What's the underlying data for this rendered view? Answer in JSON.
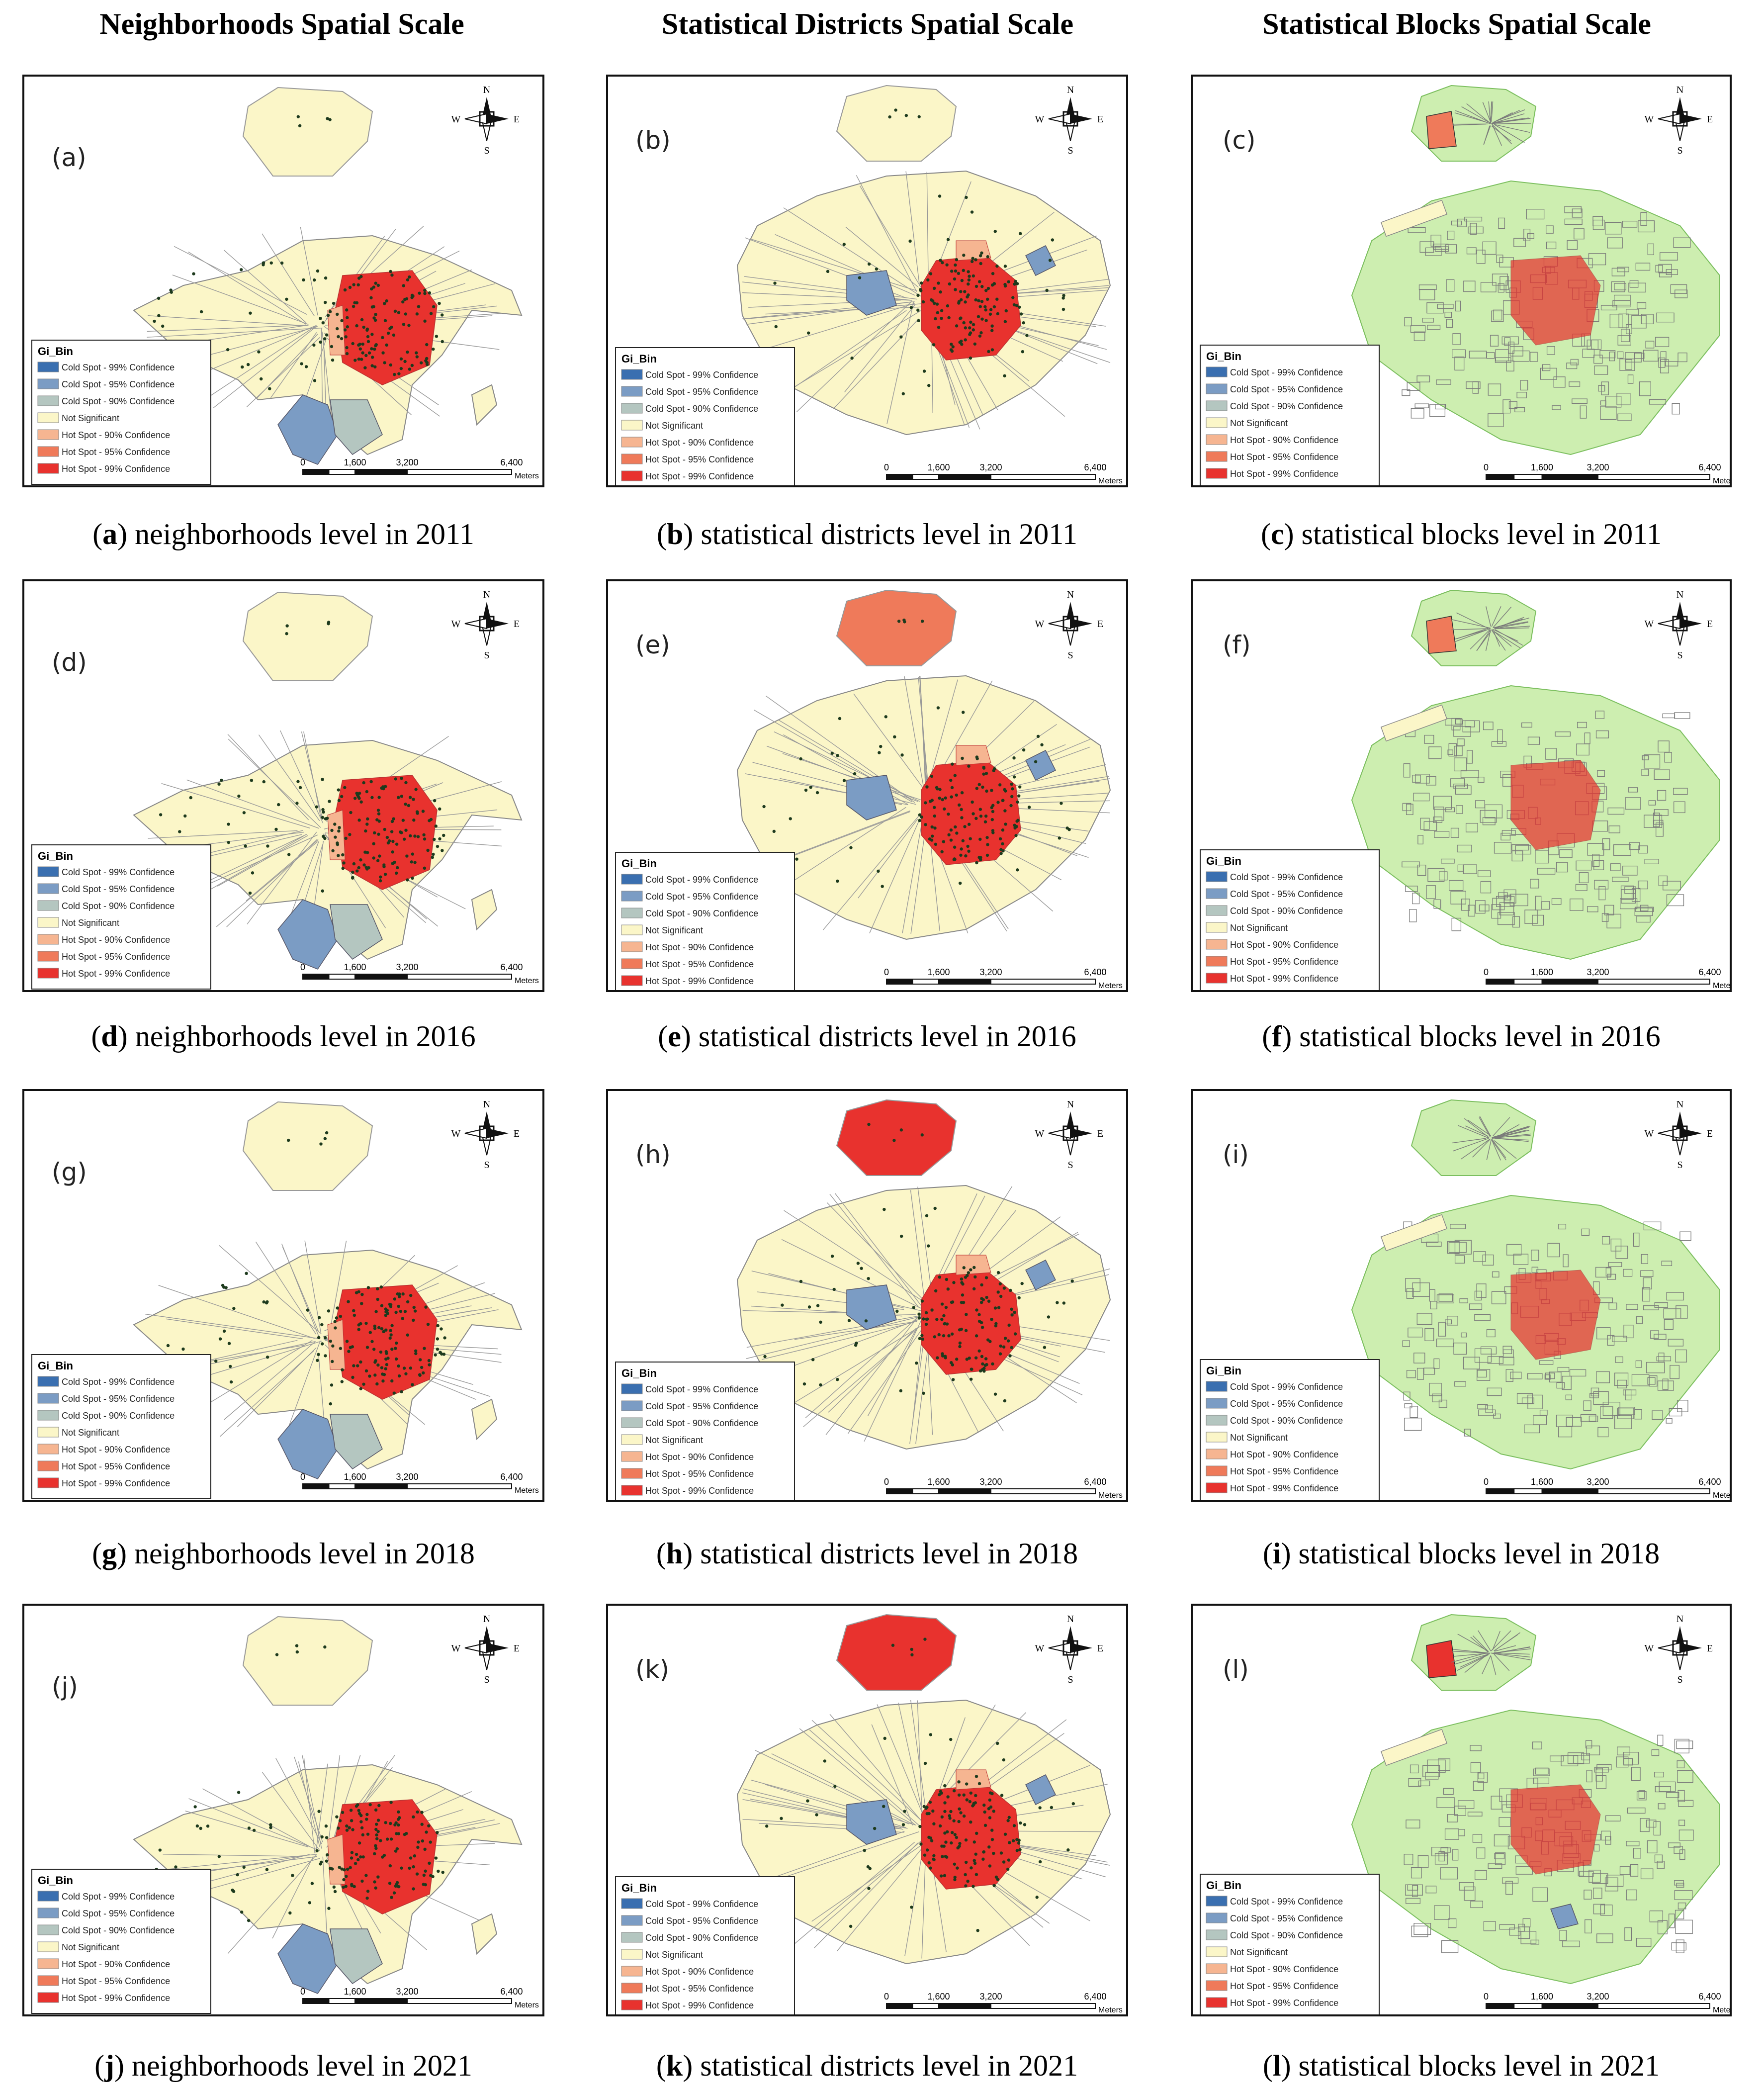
{
  "headers": [
    "Neighborhoods Spatial Scale",
    "Statistical Districts Spatial Scale",
    "Statistical Blocks Spatial Scale"
  ],
  "colors": {
    "cold99": "#3a6fb0",
    "cold95": "#7b9cc4",
    "cold90": "#b4c6c0",
    "notsig": "#fbf6c8",
    "hot90": "#f6b591",
    "hot95": "#ef7a5a",
    "hot99": "#e8322e",
    "block_bg": "#cdeeb0",
    "block_lines": "#7a7a7a"
  },
  "legend": {
    "title": "Gi_Bin",
    "items": [
      {
        "label": "Cold Spot - 99% Confidence",
        "color": "#3a6fb0"
      },
      {
        "label": "Cold Spot - 95% Confidence",
        "color": "#7b9cc4"
      },
      {
        "label": "Cold Spot - 90% Confidence",
        "color": "#b4c6c0"
      },
      {
        "label": "Not Significant",
        "color": "#fbf6c8"
      },
      {
        "label": "Hot Spot - 90% Confidence",
        "color": "#f6b591"
      },
      {
        "label": "Hot Spot - 95% Confidence",
        "color": "#ef7a5a"
      },
      {
        "label": "Hot Spot - 99% Confidence",
        "color": "#e8322e"
      }
    ]
  },
  "scalebar": {
    "ticks": [
      "0",
      "1,600",
      "3,200",
      "6,400"
    ],
    "unit": "Meters"
  },
  "compass": {
    "n": "N",
    "s": "S",
    "e": "E",
    "w": "W"
  },
  "panels": [
    {
      "letter": "a",
      "tag": "(a)",
      "caption": "neighborhoods level in 2011",
      "scale": "neighborhoods",
      "north": "notsig",
      "cold": "a"
    },
    {
      "letter": "b",
      "tag": "(b)",
      "caption": "statistical districts level in 2011",
      "scale": "districts",
      "north": "notsig",
      "cold": "b"
    },
    {
      "letter": "c",
      "tag": "(c)",
      "caption": "statistical blocks level in 2011",
      "scale": "blocks",
      "north": "hot95",
      "cold": "none"
    },
    {
      "letter": "d",
      "tag": "(d)",
      "caption": "neighborhoods level in 2016",
      "scale": "neighborhoods",
      "north": "notsig",
      "cold": "a"
    },
    {
      "letter": "e",
      "tag": "(e)",
      "caption": "statistical districts level in 2016",
      "scale": "districts",
      "north": "hot95",
      "cold": "b"
    },
    {
      "letter": "f",
      "tag": "(f)",
      "caption": "statistical blocks level in 2016",
      "scale": "blocks",
      "north": "hot95",
      "cold": "none"
    },
    {
      "letter": "g",
      "tag": "(g)",
      "caption": "neighborhoods level in 2018",
      "scale": "neighborhoods",
      "north": "notsig",
      "cold": "c"
    },
    {
      "letter": "h",
      "tag": "(h)",
      "caption": "statistical districts level in 2018",
      "scale": "districts",
      "north": "hot99",
      "cold": "b"
    },
    {
      "letter": "i",
      "tag": "(i)",
      "caption": "statistical blocks level in 2018",
      "scale": "blocks",
      "north": "none",
      "cold": "none"
    },
    {
      "letter": "j",
      "tag": "(j)",
      "caption": "neighborhoods level in 2021",
      "scale": "neighborhoods",
      "north": "notsig",
      "cold": "c"
    },
    {
      "letter": "k",
      "tag": "(k)",
      "caption": "statistical districts level in 2021",
      "scale": "districts",
      "north": "hot99",
      "cold": "b"
    },
    {
      "letter": "l",
      "tag": "(l)",
      "caption": "statistical blocks level in 2021",
      "scale": "blocks",
      "north": "hot99",
      "cold": "d"
    }
  ]
}
